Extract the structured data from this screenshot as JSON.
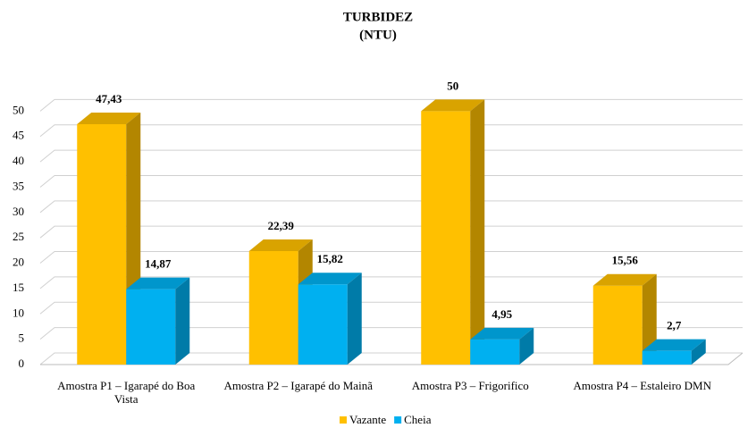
{
  "chart_data": {
    "type": "bar3d",
    "title": "TURBIDEZ",
    "subtitle": "(NTU)",
    "categories": [
      "Amostra P1 –  Igarapé do Boa Vista",
      "Amostra P2 –  Igarapé do Mainã",
      "Amostra P3 – Frigorifico",
      "Amostra P4 – Estaleiro  DMN"
    ],
    "series": [
      {
        "name": "Vazante",
        "color": "#FFC000",
        "values": [
          47.43,
          22.39,
          50,
          15.56
        ],
        "value_labels": [
          "47,43",
          "22,39",
          "50",
          "15,56"
        ]
      },
      {
        "name": "Cheia",
        "color": "#00B0F0",
        "values": [
          14.87,
          15.82,
          4.95,
          2.7
        ],
        "value_labels": [
          "14,87",
          "15,82",
          "4,95",
          "2,7"
        ]
      }
    ],
    "ylim": [
      0,
      55
    ],
    "yticks": [
      0,
      5,
      10,
      15,
      20,
      25,
      30,
      35,
      40,
      45,
      50
    ],
    "grid": true,
    "legend": "bottom"
  }
}
